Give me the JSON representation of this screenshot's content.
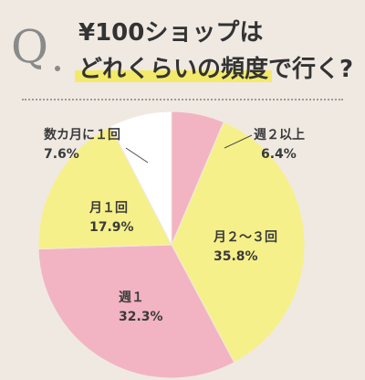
{
  "header": {
    "q_mark": "Q",
    "title_line1": "¥100ショップは",
    "title_line2_highlight": "どれくらいの頻度",
    "title_line2_rest": "で行く?"
  },
  "chart_data": {
    "type": "pie",
    "title": "¥100ショップはどれくらいの頻度で行く?",
    "unit": "%",
    "slices": [
      {
        "label": "週２以上",
        "value": 6.4,
        "display": "6.4%",
        "color": "#f2b4c2"
      },
      {
        "label": "月２〜３回",
        "value": 35.8,
        "display": "35.8%",
        "color": "#f6f08a"
      },
      {
        "label": "週１",
        "value": 32.3,
        "display": "32.3%",
        "color": "#f2b4c2"
      },
      {
        "label": "月１回",
        "value": 17.9,
        "display": "17.9%",
        "color": "#f6f08a"
      },
      {
        "label": "数カ月に１回",
        "value": 7.6,
        "display": "7.6%",
        "color": "#ffffff"
      }
    ]
  }
}
